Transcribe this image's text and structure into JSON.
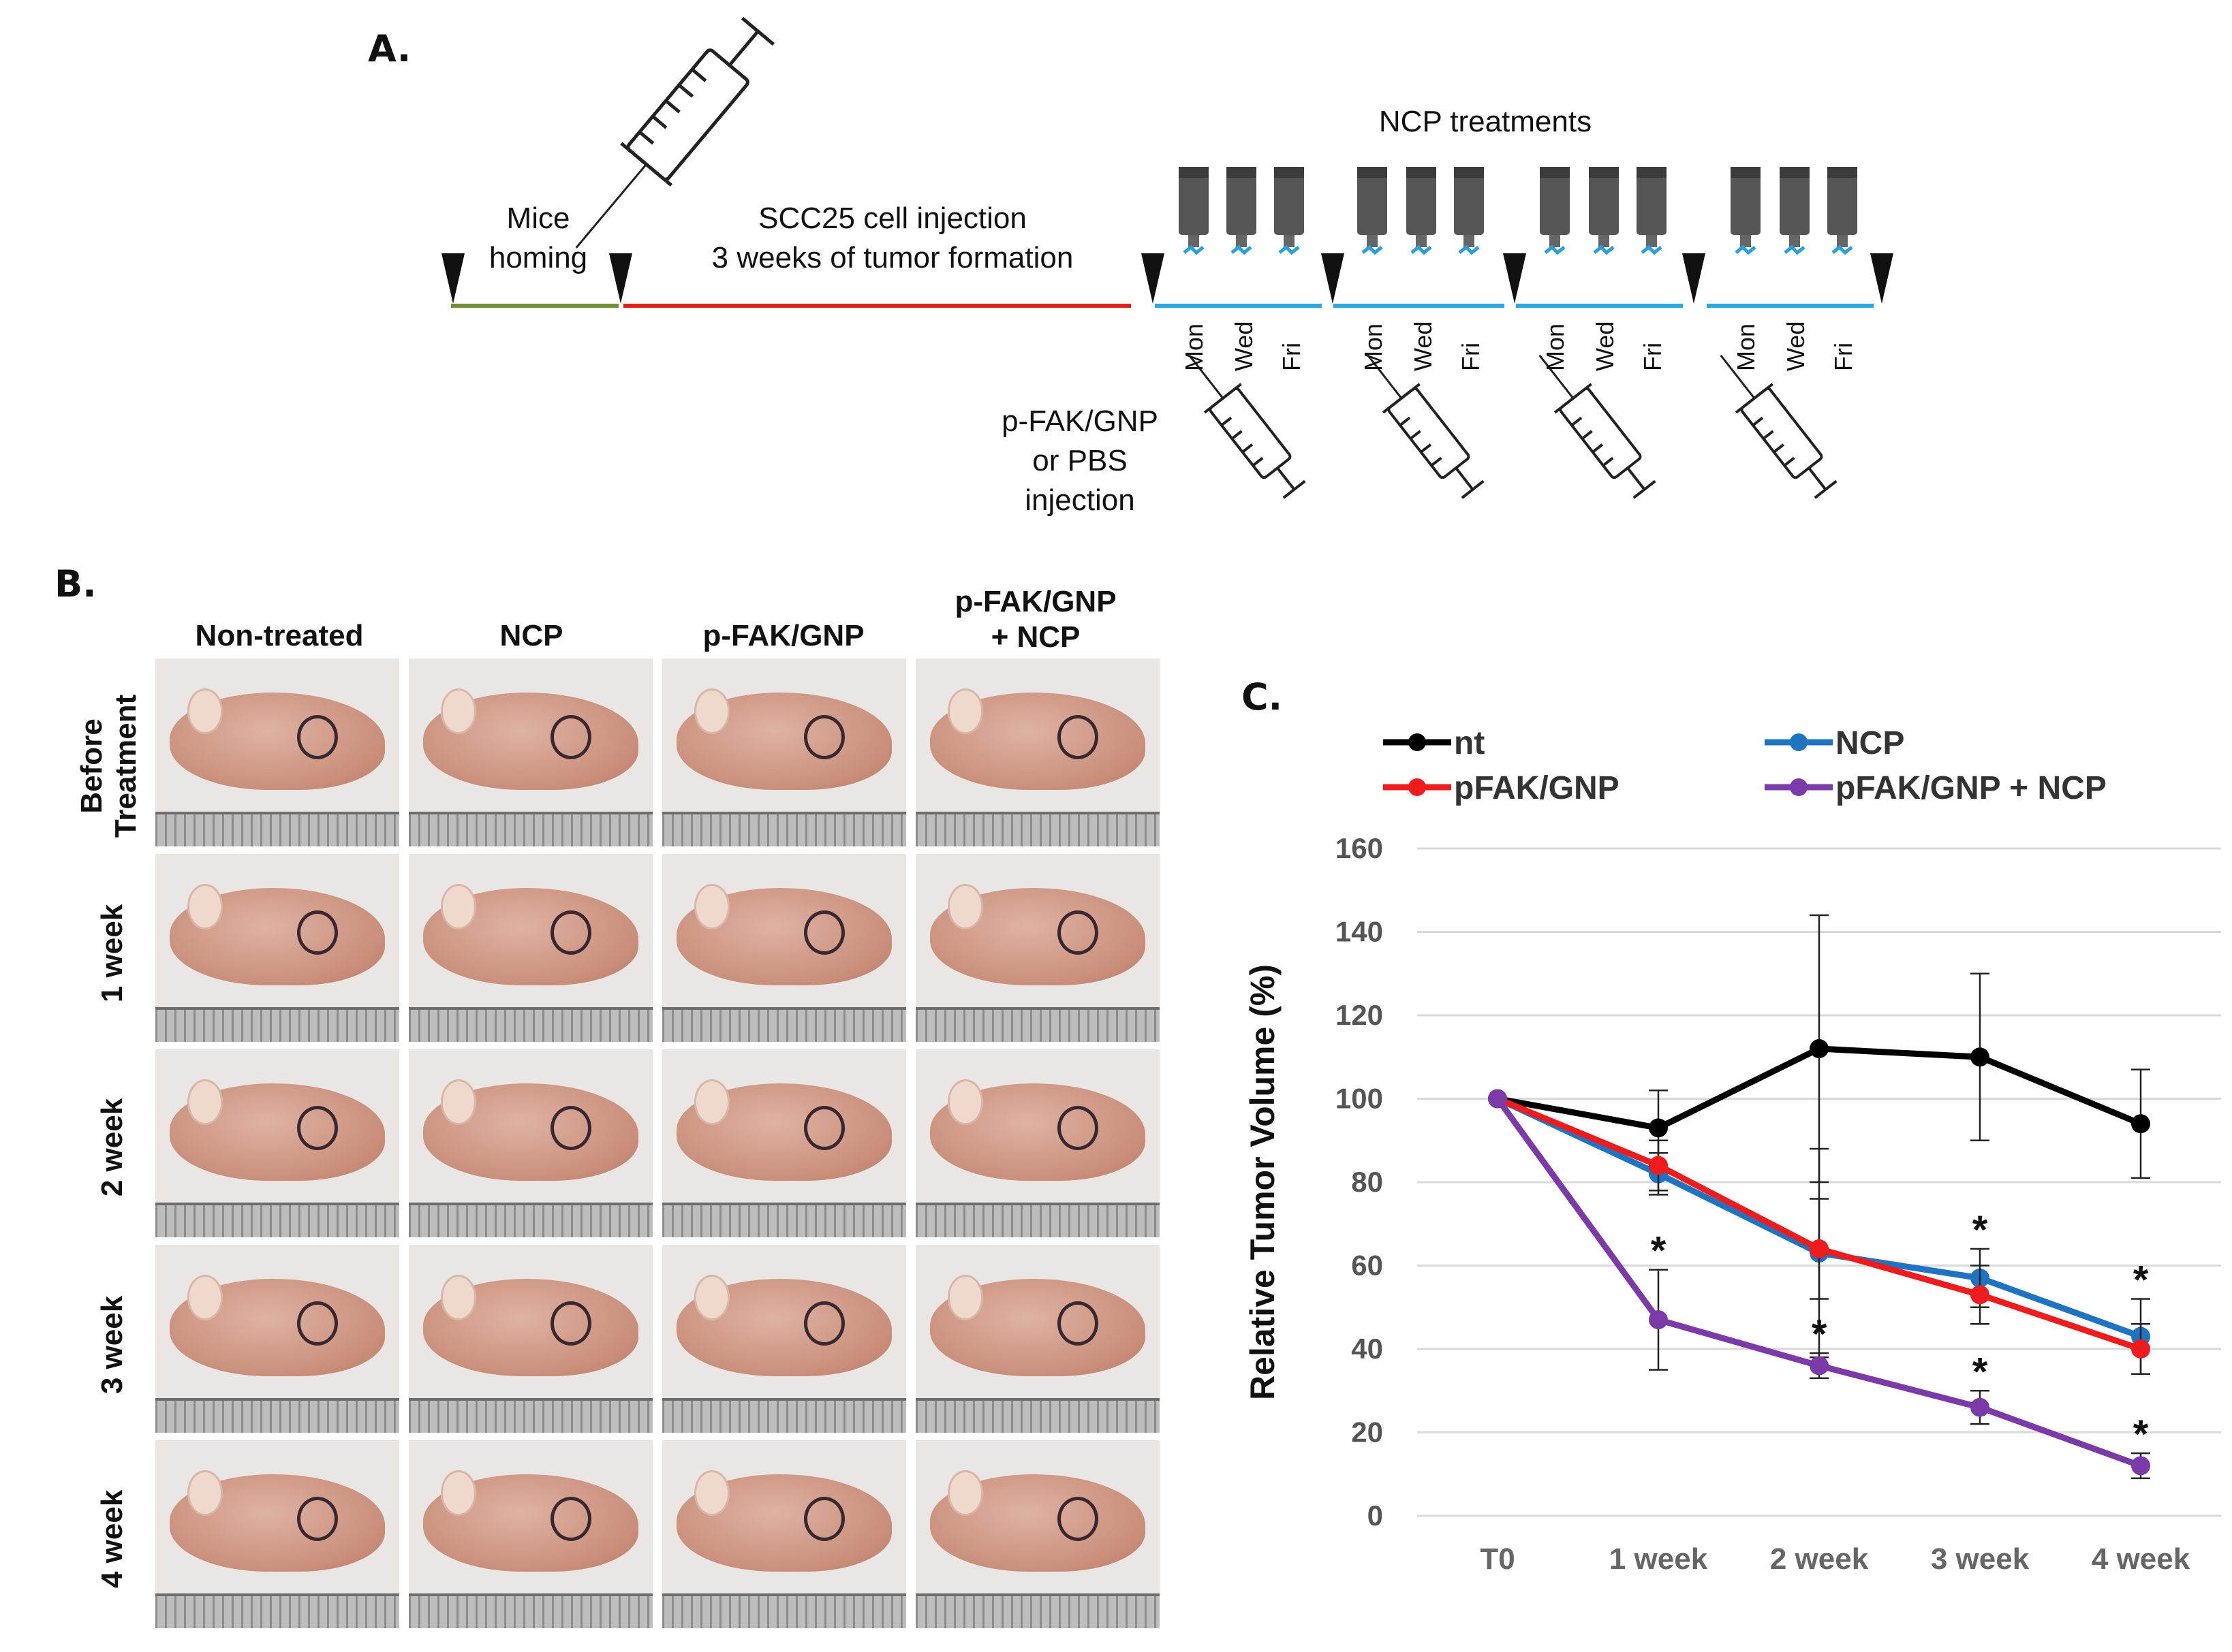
{
  "panel_a": {
    "label": "A.",
    "homing_text": "Mice\nhoming",
    "injection_text": "SCC25 cell injection\n3 weeks of tumor formation",
    "ncp_title": "NCP treatments",
    "days": [
      "Mon",
      "Wed",
      "Fri"
    ],
    "pfak_text": "p-FAK/GNP\nor PBS\ninjection",
    "colors": {
      "homing_line": "#6f8f3a",
      "injection_line": "#e0201e",
      "treatment_line": "#2aa8e0",
      "ncp_device": "#555555",
      "ncp_tip": "#2a9fe0"
    }
  },
  "panel_b": {
    "label": "B.",
    "columns": [
      "Non-treated",
      "NCP",
      "p-FAK/GNP",
      "p-FAK/GNP\n+ NCP"
    ],
    "rows": [
      "Before\nTreatment",
      "1 week",
      "2 week",
      "3 week",
      "4 week"
    ]
  },
  "panel_c": {
    "label": "C.",
    "chart_data": {
      "type": "line",
      "title": "",
      "xlabel": "",
      "ylabel": "Relative Tumor Volume (%)",
      "categories": [
        "T0",
        "1 week",
        "2 week",
        "3 week",
        "4 week"
      ],
      "ylim": [
        0,
        160
      ],
      "yticks": [
        0,
        20,
        40,
        60,
        80,
        100,
        120,
        140,
        160
      ],
      "grid": true,
      "legend_position": "top",
      "series": [
        {
          "name": "nt",
          "color": "#000000",
          "values": [
            100,
            93,
            112,
            110,
            94
          ],
          "errors": [
            0,
            9,
            32,
            20,
            13
          ],
          "sig": [
            false,
            false,
            false,
            false,
            false
          ]
        },
        {
          "name": "NCP",
          "color": "#1f74c2",
          "values": [
            100,
            82,
            63,
            57,
            43
          ],
          "errors": [
            0,
            5,
            25,
            7,
            9
          ],
          "sig": [
            false,
            false,
            false,
            true,
            true
          ]
        },
        {
          "name": "pFAK/GNP",
          "color": "#ee1c1c",
          "values": [
            100,
            84,
            64,
            53,
            40
          ],
          "errors": [
            0,
            6,
            12,
            7,
            6
          ],
          "sig": [
            false,
            false,
            false,
            false,
            false
          ]
        },
        {
          "name": "pFAK/GNP + NCP",
          "color": "#7b3aa7",
          "values": [
            100,
            47,
            36,
            26,
            12
          ],
          "errors": [
            0,
            12,
            3,
            4,
            3
          ],
          "sig": [
            false,
            true,
            true,
            true,
            true
          ]
        }
      ],
      "significance_marker": "*"
    }
  }
}
